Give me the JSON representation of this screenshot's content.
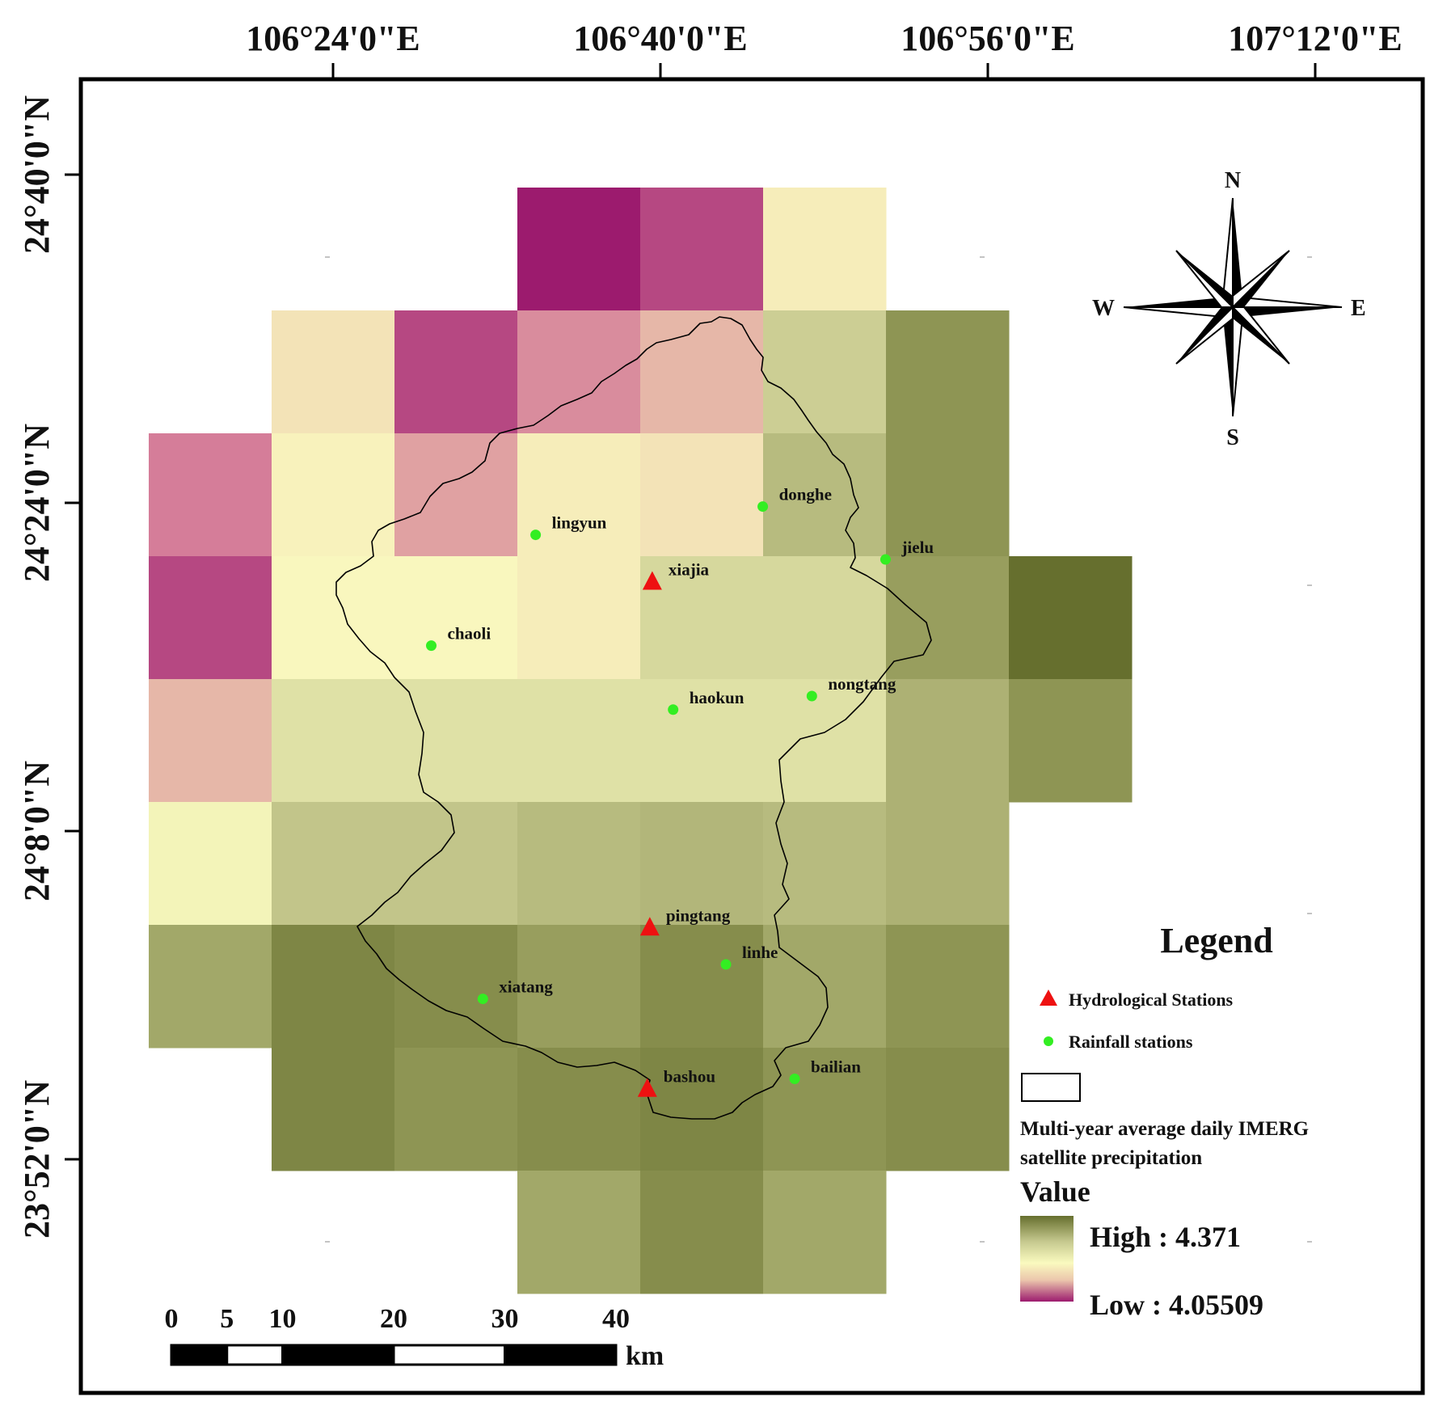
{
  "map": {
    "lon_labels": [
      "106°24'0\"E",
      "106°40'0\"E",
      "106°56'0\"E",
      "107°12'0\"E"
    ],
    "lat_labels": [
      "24°40'0\"N",
      "24°24'0\"N",
      "24°8'0\"N",
      "23°52'0\"N"
    ],
    "grid": {
      "rows": [
        [
          null,
          null,
          null,
          4.055,
          4.08,
          4.2,
          null,
          null
        ],
        [
          null,
          4.19,
          4.08,
          4.12,
          4.15,
          4.26,
          4.32,
          null
        ],
        [
          4.11,
          4.205,
          4.135,
          4.2,
          4.19,
          4.28,
          4.32,
          null
        ],
        [
          4.08,
          4.21,
          4.21,
          4.2,
          4.25,
          4.25,
          4.31,
          4.371
        ],
        [
          4.15,
          4.24,
          4.24,
          4.24,
          4.24,
          4.24,
          4.29,
          4.32
        ],
        [
          4.22,
          4.27,
          4.27,
          4.28,
          4.285,
          4.28,
          4.29,
          null
        ],
        [
          4.3,
          4.34,
          4.33,
          4.31,
          4.33,
          4.3,
          4.32,
          null
        ],
        [
          null,
          4.34,
          4.32,
          4.33,
          4.34,
          4.32,
          4.33,
          null
        ],
        [
          null,
          null,
          null,
          4.3,
          4.33,
          4.3,
          null,
          null
        ]
      ]
    },
    "hydrological_stations": [
      {
        "name": "xiajia",
        "lon": 106.66,
        "lat": 24.336
      },
      {
        "name": "pingtang",
        "lon": 106.658,
        "lat": 24.055
      },
      {
        "name": "bashou",
        "lon": 106.656,
        "lat": 23.924
      }
    ],
    "rainfall_stations": [
      {
        "name": "lingyun",
        "lon": 106.565,
        "lat": 24.374
      },
      {
        "name": "donghe",
        "lon": 106.75,
        "lat": 24.397
      },
      {
        "name": "jielu",
        "lon": 106.85,
        "lat": 24.354
      },
      {
        "name": "chaoli",
        "lon": 106.48,
        "lat": 24.284
      },
      {
        "name": "haokun",
        "lon": 106.677,
        "lat": 24.232
      },
      {
        "name": "nongtang",
        "lon": 106.79,
        "lat": 24.243
      },
      {
        "name": "linhe",
        "lon": 106.72,
        "lat": 24.025
      },
      {
        "name": "xiatang",
        "lon": 106.522,
        "lat": 23.997
      },
      {
        "name": "bailian",
        "lon": 106.776,
        "lat": 23.932
      }
    ]
  },
  "compass": {
    "n": "N",
    "s": "S",
    "e": "E",
    "w": "W"
  },
  "scale_bar": {
    "labels": [
      "0",
      "5",
      "10",
      "20",
      "30",
      "40"
    ],
    "values": [
      0,
      5,
      10,
      20,
      30,
      40
    ],
    "unit": "km"
  },
  "legend": {
    "title": "Legend",
    "hydro_label": "Hydrological Stations",
    "rain_label": "Rainfall stations",
    "layer_line1": "Multi-year average daily IMERG",
    "layer_line2": "satellite precipitation",
    "value_label": "Value",
    "high_label": "High : 4.371",
    "low_label": "Low : 4.05509",
    "high_value": 4.371,
    "low_value": 4.05509
  },
  "colors": {
    "ramp": [
      "#9c1b6e",
      "#d47a98",
      "#ebc6ac",
      "#fafabf",
      "#c6c98f",
      "#8f9655",
      "#666f2e"
    ],
    "hydro_marker": "#ee1111",
    "rain_marker": "#33ee22",
    "boundary": "#000000"
  }
}
